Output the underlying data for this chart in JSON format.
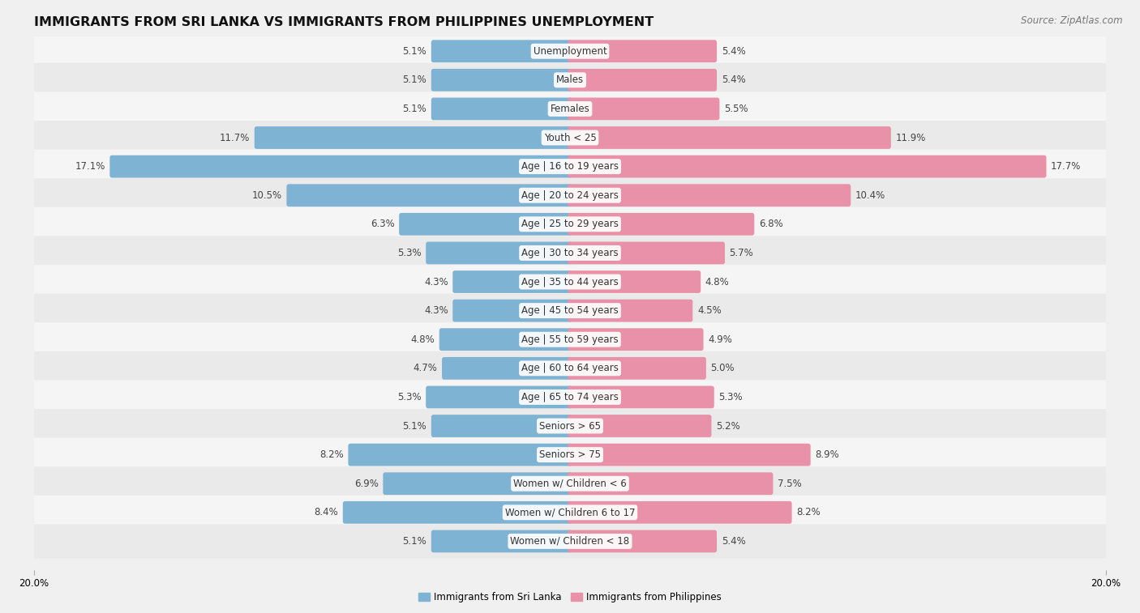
{
  "title": "IMMIGRANTS FROM SRI LANKA VS IMMIGRANTS FROM PHILIPPINES UNEMPLOYMENT",
  "source": "Source: ZipAtlas.com",
  "categories": [
    "Unemployment",
    "Males",
    "Females",
    "Youth < 25",
    "Age | 16 to 19 years",
    "Age | 20 to 24 years",
    "Age | 25 to 29 years",
    "Age | 30 to 34 years",
    "Age | 35 to 44 years",
    "Age | 45 to 54 years",
    "Age | 55 to 59 years",
    "Age | 60 to 64 years",
    "Age | 65 to 74 years",
    "Seniors > 65",
    "Seniors > 75",
    "Women w/ Children < 6",
    "Women w/ Children 6 to 17",
    "Women w/ Children < 18"
  ],
  "sri_lanka": [
    5.1,
    5.1,
    5.1,
    11.7,
    17.1,
    10.5,
    6.3,
    5.3,
    4.3,
    4.3,
    4.8,
    4.7,
    5.3,
    5.1,
    8.2,
    6.9,
    8.4,
    5.1
  ],
  "philippines": [
    5.4,
    5.4,
    5.5,
    11.9,
    17.7,
    10.4,
    6.8,
    5.7,
    4.8,
    4.5,
    4.9,
    5.0,
    5.3,
    5.2,
    8.9,
    7.5,
    8.2,
    5.4
  ],
  "sri_lanka_color": "#7fb3d3",
  "philippines_color": "#e891a8",
  "row_color_odd": "#eaeaea",
  "row_color_even": "#f5f5f5",
  "background_color": "#f0f0f0",
  "axis_max": 20.0,
  "legend_sri_lanka": "Immigrants from Sri Lanka",
  "legend_philippines": "Immigrants from Philippines",
  "title_fontsize": 11.5,
  "label_fontsize": 8.5,
  "value_fontsize": 8.5,
  "source_fontsize": 8.5
}
